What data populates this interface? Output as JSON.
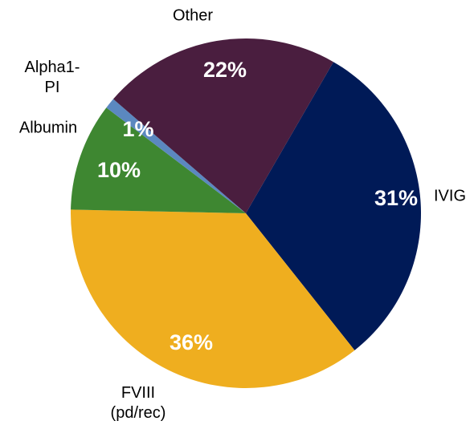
{
  "chart_data": {
    "type": "pie",
    "categories": [
      "IVIG",
      "FVIII\n(pd/rec)",
      "Albumin",
      "Alpha1-\nPI",
      "Other"
    ],
    "values": [
      31,
      36,
      10,
      1,
      22
    ],
    "value_labels": [
      "31%",
      "36%",
      "10%",
      "1%",
      "22%"
    ],
    "colors": [
      "#001a57",
      "#efae1f",
      "#3e8731",
      "#5b88c0",
      "#4a1e3f"
    ]
  }
}
